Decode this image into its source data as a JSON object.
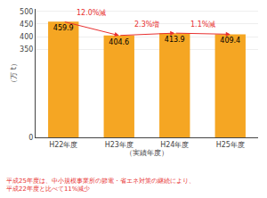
{
  "chart_data": {
    "type": "bar",
    "categories": [
      "H22年度",
      "H23年度",
      "H24年度",
      "H25年度"
    ],
    "values": [
      459.9,
      404.6,
      413.9,
      409.4
    ],
    "color": "#F5A623",
    "xlabel": "（実績年度）",
    "ylabel": "（万 t）",
    "ylim": [
      0,
      510
    ],
    "yticks": [
      0,
      350,
      400,
      450,
      500
    ],
    "grid": true,
    "data_labels": true,
    "annotations": [
      {
        "text": "12.0%減",
        "color": "#E83030"
      },
      {
        "text": "2.3%増",
        "color": "#E83030"
      },
      {
        "text": "1.1%減",
        "color": "#E83030"
      }
    ],
    "footnote": {
      "text": [
        "平成25年度は、中小規模事業所の節電・省エネ対策の継続により、",
        "平成22年度と比べて11%減少"
      ],
      "color": "#E83030"
    }
  }
}
